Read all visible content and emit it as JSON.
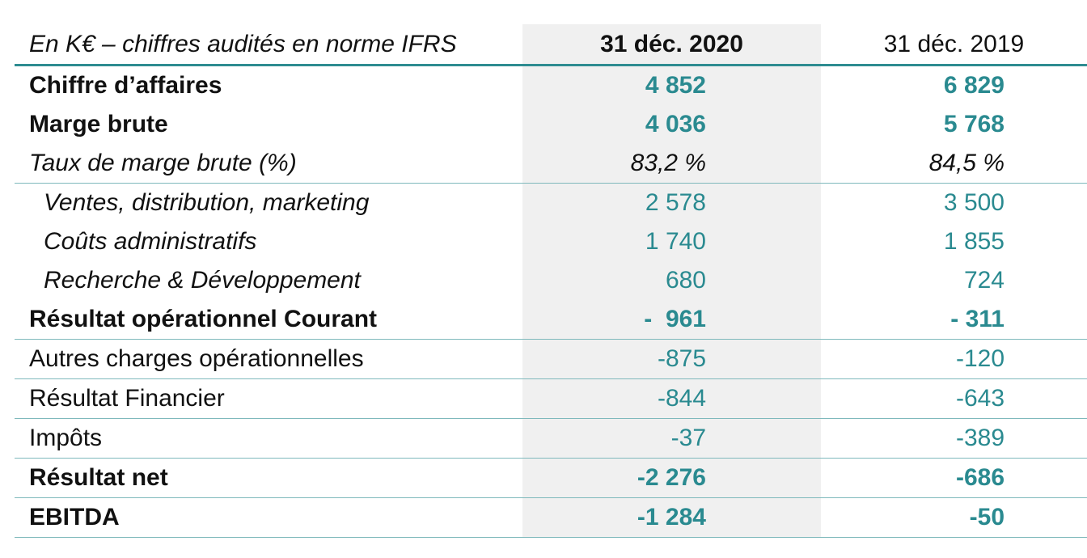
{
  "table": {
    "header": {
      "label": "En K€ – chiffres audités en norme IFRS",
      "col_2020": "31 déc. 2020",
      "col_2019": "31 déc. 2019"
    },
    "rows": [
      {
        "label": "Chiffre d’affaires",
        "v2020": "4 852",
        "v2019": "6 829"
      },
      {
        "label": "Marge brute",
        "v2020": "4 036",
        "v2019": "5 768"
      },
      {
        "label": "Taux de marge brute (%)",
        "v2020": "83,2 %",
        "v2019": "84,5 %"
      },
      {
        "label": "Ventes, distribution, marketing",
        "v2020": "2 578",
        "v2019": "3 500"
      },
      {
        "label": "Coûts administratifs",
        "v2020": "1 740",
        "v2019": "1 855"
      },
      {
        "label": "Recherche & Développement",
        "v2020": "680",
        "v2019": "724"
      },
      {
        "label": "Résultat opérationnel Courant",
        "v2020": "-  961",
        "v2019": "- 311"
      },
      {
        "label": "Autres charges opérationnelles",
        "v2020": "-875",
        "v2019": "-120"
      },
      {
        "label": "Résultat Financier",
        "v2020": "-844",
        "v2019": "-643"
      },
      {
        "label": "Impôts",
        "v2020": "-37",
        "v2019": "-389"
      },
      {
        "label": "Résultat net",
        "v2020": "-2 276",
        "v2019": "-686"
      },
      {
        "label": "EBITDA",
        "v2020": "-1 284",
        "v2019": "-50"
      }
    ]
  },
  "colors": {
    "accent": "#2a8a90",
    "rule": "#2e8c91",
    "highlight_column": "#f0f0f0"
  }
}
